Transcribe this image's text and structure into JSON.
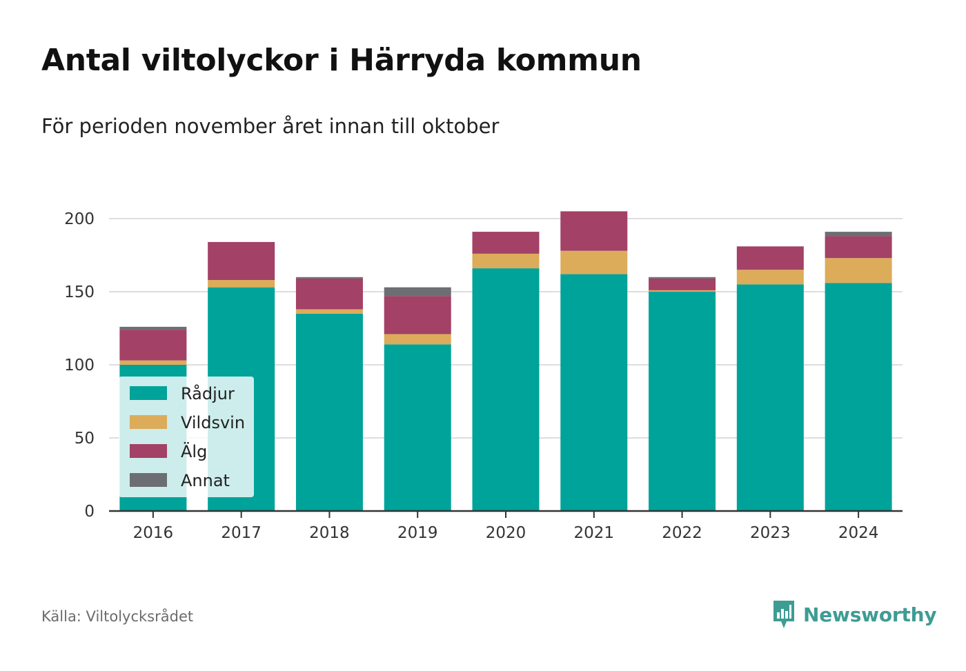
{
  "title": "Antal viltolyckor i Härryda kommun",
  "subtitle": "För perioden november året innan till oktober",
  "source": "Källa: Viltolycksrådet",
  "brand": {
    "name": "Newsworthy",
    "icon": "newsworthy-logo-icon",
    "color": "#3e9c93"
  },
  "chart_data": {
    "type": "bar",
    "stacked": true,
    "categories": [
      "2016",
      "2017",
      "2018",
      "2019",
      "2020",
      "2021",
      "2022",
      "2023",
      "2024"
    ],
    "series": [
      {
        "name": "Rådjur",
        "color": "#00a39a",
        "values": [
          100,
          153,
          135,
          114,
          166,
          162,
          150,
          155,
          156
        ]
      },
      {
        "name": "Vildsvin",
        "color": "#dcac5a",
        "values": [
          3,
          5,
          3,
          7,
          10,
          16,
          1,
          10,
          17
        ]
      },
      {
        "name": "Älg",
        "color": "#a34166",
        "values": [
          21,
          26,
          21,
          26,
          15,
          27,
          8,
          16,
          15
        ]
      },
      {
        "name": "Annat",
        "color": "#6d6e73",
        "values": [
          2,
          0,
          1,
          6,
          0,
          0,
          1,
          0,
          3
        ]
      }
    ],
    "yticks": [
      0,
      50,
      100,
      150,
      200
    ],
    "ylim": [
      0,
      215
    ],
    "grid": true,
    "legend_position": "bottom-left",
    "xlabel": "",
    "ylabel": ""
  }
}
